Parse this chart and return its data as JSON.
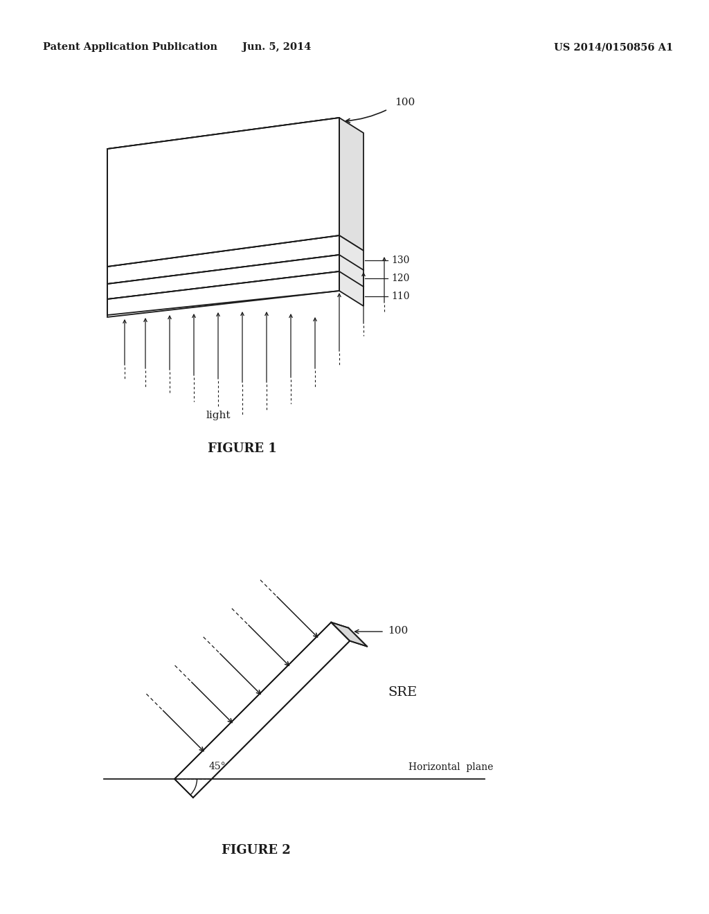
{
  "background_color": "#ffffff",
  "header_left": "Patent Application Publication",
  "header_center": "Jun. 5, 2014",
  "header_right": "US 2014/0150856 A1",
  "header_fontsize": 10.5,
  "figure1_caption": "FIGURE 1",
  "figure2_caption": "FIGURE 2",
  "label_100_fig1": "100",
  "label_130": "130",
  "label_120": "120",
  "label_110": "110",
  "label_100_fig2": "100",
  "label_SRE": "SRE",
  "label_45deg": "45°",
  "label_horizontal": "Horizontal  plane",
  "label_light": "light",
  "line_color": "#1a1a1a",
  "text_color": "#1a1a1a"
}
